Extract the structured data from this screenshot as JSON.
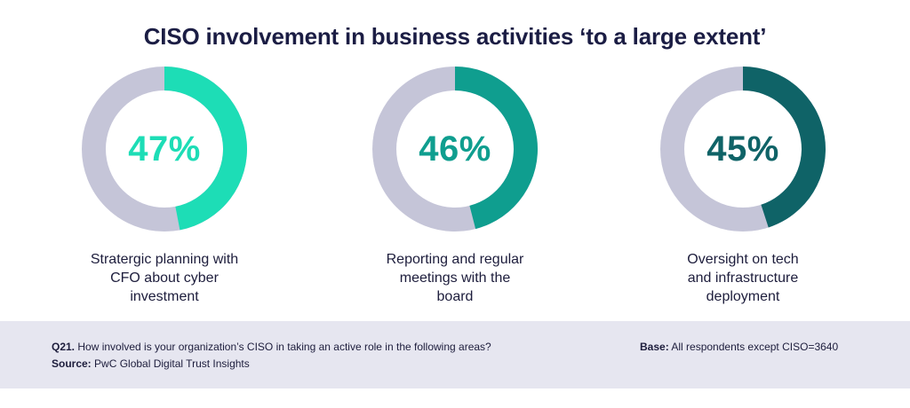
{
  "title": "CISO involvement in business activities ‘to a large extent’",
  "colors": {
    "track": "#c5c5d8",
    "donut1": "#1dddb6",
    "donut2": "#0f9e8f",
    "donut3": "#0f6367",
    "footer_bg": "#e6e6f0"
  },
  "chart_data": {
    "type": "pie",
    "title": "CISO involvement in business activities ‘to a large extent’",
    "series": [
      {
        "value": 47,
        "display": "47%",
        "label_lines": [
          "Stratergic planning with",
          "CFO about cyber",
          "investment"
        ],
        "color": "#1dddb6"
      },
      {
        "value": 46,
        "display": "46%",
        "label_lines": [
          "Reporting and regular",
          "meetings with the",
          "board"
        ],
        "color": "#0f9e8f"
      },
      {
        "value": 45,
        "display": "45%",
        "label_lines": [
          "Oversight on tech",
          "and infrastructure",
          "deployment"
        ],
        "color": "#0f6367"
      }
    ]
  },
  "footer": {
    "question_prefix": "Q21.",
    "question_text": "How involved is your organization’s CISO in taking an active role in the following areas?",
    "source_prefix": "Source:",
    "source_text": "PwC Global Digital Trust Insights",
    "base_prefix": "Base:",
    "base_text": "All respondents except CISO=3640"
  }
}
